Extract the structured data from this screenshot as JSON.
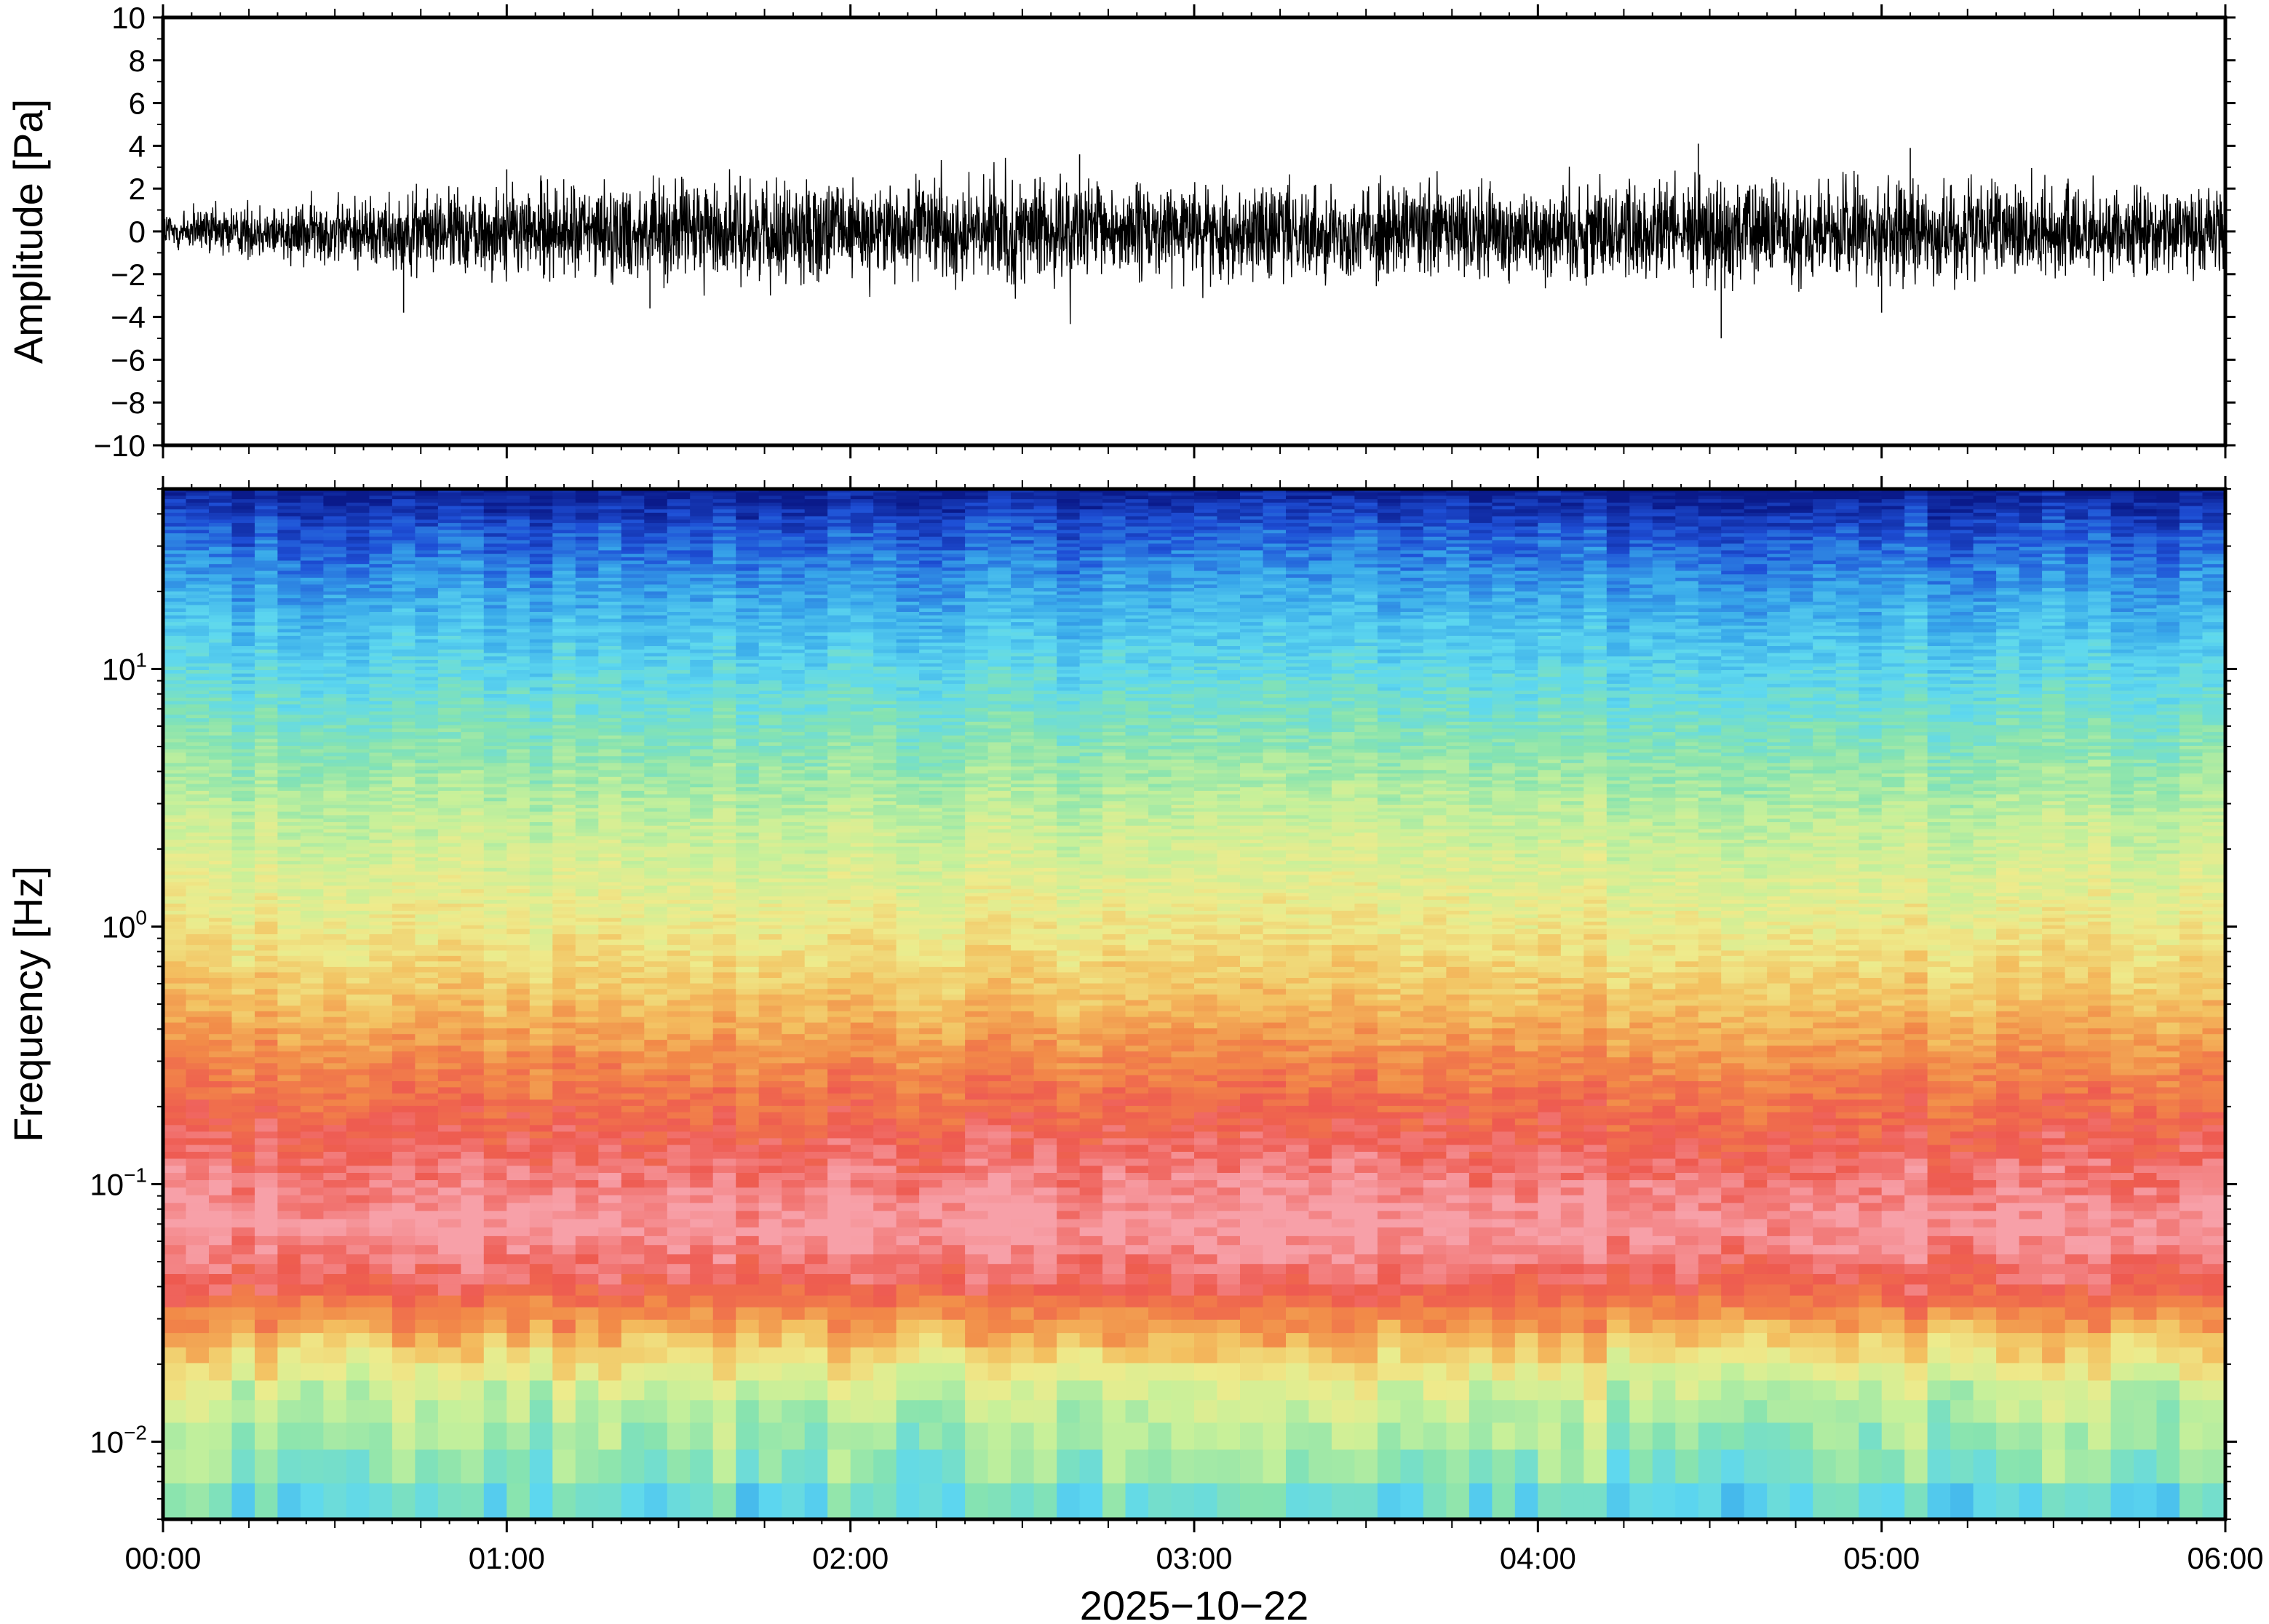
{
  "chart_data": [
    {
      "type": "line",
      "panel": "waveform",
      "ylabel": "Amplitude [Pa]",
      "ylim": [
        -10,
        10
      ],
      "yticks": [
        10,
        8,
        6,
        4,
        2,
        0,
        -2,
        -4,
        -6,
        -8,
        -10
      ],
      "ytick_labels": [
        "10",
        "8",
        "6",
        "4",
        "2",
        "0",
        "−2",
        "−4",
        "−6",
        "−8",
        "−10"
      ],
      "xlim": [
        "00:00",
        "06:00"
      ],
      "series": [
        {
          "color": "#000000",
          "envelope_hours": [
            0,
            0.5,
            1,
            1.5,
            2,
            2.5,
            3,
            3.5,
            4,
            4.5,
            5,
            5.5,
            6
          ],
          "typical_abs_pa": [
            0.8,
            1.2,
            1.6,
            1.8,
            1.7,
            1.8,
            1.6,
            1.7,
            1.8,
            1.9,
            1.8,
            1.6,
            1.4
          ],
          "peaks": [
            {
              "time": "00:42",
              "value": -3.8
            },
            {
              "time": "01:00",
              "value": 2.9
            },
            {
              "time": "01:25",
              "value": -3.6
            },
            {
              "time": "02:40",
              "value": 3.6
            },
            {
              "time": "04:28",
              "value": 4.1
            },
            {
              "time": "04:32",
              "value": -5.0
            },
            {
              "time": "05:05",
              "value": 3.9
            },
            {
              "time": "05:00",
              "value": -3.8
            }
          ]
        }
      ]
    },
    {
      "type": "heatmap",
      "panel": "spectrogram",
      "ylabel": "Frequency [Hz]",
      "yscale": "log",
      "ylim": [
        0.005,
        50
      ],
      "yticks": [
        10,
        1,
        0.1,
        0.01
      ],
      "ytick_labels": [
        {
          "base": "10",
          "exp": "1"
        },
        {
          "base": "10",
          "exp": "0"
        },
        {
          "base": "10",
          "exp": "−1"
        },
        {
          "base": "10",
          "exp": "−2"
        }
      ],
      "colormap": [
        "#0a1a8a",
        "#1e4fd6",
        "#38a8ea",
        "#5ed8ef",
        "#86e3b0",
        "#c6f09a",
        "#eeeb8c",
        "#f3c060",
        "#f28a48",
        "#ee5a50",
        "#f7a0a8"
      ],
      "frequency_profile": [
        {
          "hz": 50,
          "color_index": 0
        },
        {
          "hz": 35,
          "color_index": 1
        },
        {
          "hz": 20,
          "color_index": 2
        },
        {
          "hz": 10,
          "color_index": 3
        },
        {
          "hz": 5,
          "color_index": 4
        },
        {
          "hz": 2.5,
          "color_index": 5
        },
        {
          "hz": 1.0,
          "color_index": 6
        },
        {
          "hz": 0.5,
          "color_index": 7
        },
        {
          "hz": 0.3,
          "color_index": 8
        },
        {
          "hz": 0.15,
          "color_index": 9
        },
        {
          "hz": 0.07,
          "color_index": 10
        },
        {
          "hz": 0.04,
          "color_index": 9
        },
        {
          "hz": 0.025,
          "color_index": 7
        },
        {
          "hz": 0.015,
          "color_index": 5
        },
        {
          "hz": 0.008,
          "color_index": 4
        },
        {
          "hz": 0.005,
          "color_index": 3
        }
      ]
    }
  ],
  "x_axis": {
    "tick_labels": [
      "00:00",
      "01:00",
      "02:00",
      "03:00",
      "04:00",
      "05:00",
      "06:00"
    ],
    "xlabel": "2025−10−22"
  }
}
